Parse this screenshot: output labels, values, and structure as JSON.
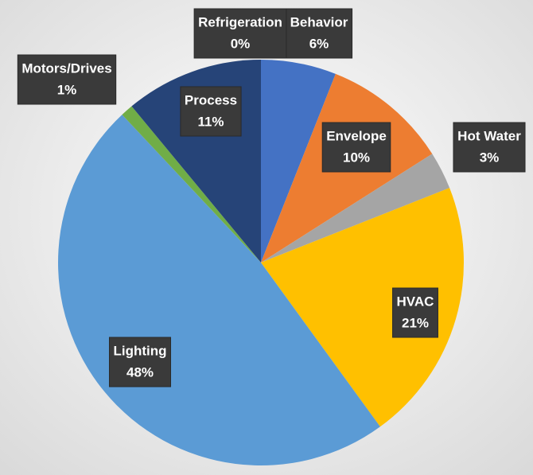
{
  "chart_data": {
    "type": "pie",
    "categories": [
      "Behavior",
      "Envelope",
      "Hot Water",
      "HVAC",
      "Lighting",
      "Motors/Drives",
      "Process",
      "Refrigeration"
    ],
    "values": [
      6,
      10,
      3,
      21,
      48,
      1,
      11,
      0
    ],
    "value_labels": [
      "6%",
      "10%",
      "3%",
      "21%",
      "48%",
      "1%",
      "11%",
      "0%"
    ],
    "colors": [
      "#4472c4",
      "#ed7d31",
      "#a5a5a5",
      "#ffc000",
      "#5b9bd5",
      "#70ad47",
      "#264478",
      "#9e480e"
    ]
  }
}
